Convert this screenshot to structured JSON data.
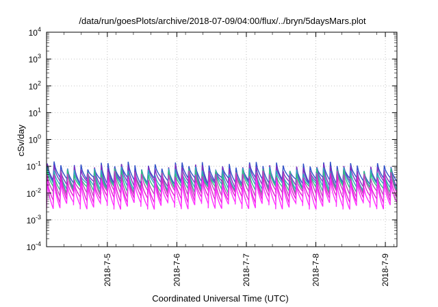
{
  "chart_data": {
    "type": "line",
    "title": "/data/run/goesPlots/archive/2018-07-09/04:00/flux/../bryn/5daysMars.plot",
    "xlabel": "Coordinated Universal Time (UTC)",
    "ylabel": "cSv/day",
    "yscale": "log",
    "ylim": [
      0.0001,
      10000
    ],
    "xlim": [
      "2018-07-04 03:00",
      "2018-07-09 04:00"
    ],
    "y_ticks": [
      {
        "base": "10",
        "exp": "4"
      },
      {
        "base": "10",
        "exp": "3"
      },
      {
        "base": "10",
        "exp": "2"
      },
      {
        "base": "10",
        "exp": "1"
      },
      {
        "base": "10",
        "exp": "0"
      },
      {
        "base": "10",
        "exp": "-1"
      },
      {
        "base": "10",
        "exp": "-2"
      },
      {
        "base": "10",
        "exp": "-3"
      },
      {
        "base": "10",
        "exp": "-4"
      }
    ],
    "x_ticks": [
      "2018-7-5",
      "2018-7-6",
      "2018-7-7",
      "2018-7-8",
      "2018-7-9"
    ],
    "x_tick_dates": [
      "2018-07-05",
      "2018-07-06",
      "2018-07-07",
      "2018-07-08",
      "2018-07-09"
    ],
    "grid": true,
    "pattern": {
      "sawtooth_cycles": 52,
      "description_note": "many overlapping sawtooth series; each cycle rises sharply then decays"
    },
    "series": [
      {
        "color": "#3050c8",
        "peak": 0.11,
        "trough": 0.03
      },
      {
        "color": "#8030c0",
        "peak": 0.09,
        "trough": 0.022
      },
      {
        "color": "#2aa8c0",
        "peak": 0.07,
        "trough": 0.018
      },
      {
        "color": "#30c080",
        "peak": 0.06,
        "trough": 0.014
      },
      {
        "color": "#c040c0",
        "peak": 0.05,
        "trough": 0.01
      },
      {
        "color": "#e020d0",
        "peak": 0.035,
        "trough": 0.006
      },
      {
        "color": "#ff30ff",
        "peak": 0.025,
        "trough": 0.0035
      }
    ]
  }
}
